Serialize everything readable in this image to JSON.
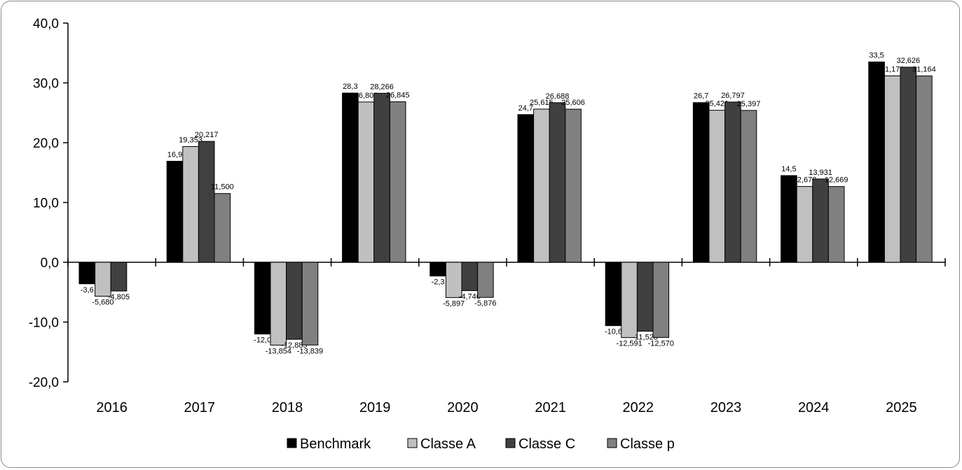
{
  "chart_data": {
    "type": "bar",
    "categories": [
      "2016",
      "2017",
      "2018",
      "2019",
      "2020",
      "2021",
      "2022",
      "2023",
      "2024",
      "2025"
    ],
    "series": [
      {
        "name": "Benchmark",
        "color": "#000000",
        "values": [
          -3.6,
          16.9,
          -12.0,
          28.3,
          -2.3,
          24.7,
          -10.6,
          26.7,
          14.5,
          33.5
        ],
        "labels": [
          "-3,6",
          "16,9",
          "-12,0",
          "28,3",
          "-2,3",
          "24,7",
          "-10,6",
          "26,7",
          "14,5",
          "33,5"
        ]
      },
      {
        "name": "Classe A",
        "color": "#c0c0c0",
        "values": [
          -5.68,
          19.353,
          -13.854,
          26.802,
          -5.897,
          25.615,
          -12.591,
          25.421,
          12.678,
          31.171
        ],
        "labels": [
          "-5,680",
          "19,353",
          "-13,854",
          "26,802",
          "-5,897",
          "25,615",
          "-12,591",
          "25,421",
          "12,678",
          "31,171"
        ]
      },
      {
        "name": "Classe C",
        "color": "#404040",
        "values": [
          -4.805,
          20.217,
          -12.885,
          28.266,
          -4.746,
          26.688,
          -11.528,
          26.797,
          13.931,
          32.626
        ],
        "labels": [
          "-4,805",
          "20,217",
          "-12,885",
          "28,266",
          "-4,746",
          "26,688",
          "-11,528",
          "26,797",
          "13,931",
          "32,626"
        ]
      },
      {
        "name": "Classe p",
        "color": "#808080",
        "values": [
          null,
          11.5,
          -13.839,
          26.845,
          -5.876,
          25.606,
          -12.57,
          25.397,
          12.669,
          31.164
        ],
        "labels": [
          null,
          "11,500",
          "-13,839",
          "26,845",
          "-5,876",
          "25,606",
          "-12,570",
          "25,397",
          "12,669",
          "31,164"
        ]
      }
    ],
    "ylim": [
      -20,
      40
    ],
    "y_ticks": [
      -20,
      -10,
      0,
      10,
      20,
      30,
      40
    ],
    "y_tick_labels": [
      "-20,0",
      "-10,0",
      "0,0",
      "10,0",
      "20,0",
      "30,0",
      "40,0"
    ],
    "legend": "bottom",
    "grid": false,
    "title": "",
    "xlabel": "",
    "ylabel": ""
  }
}
